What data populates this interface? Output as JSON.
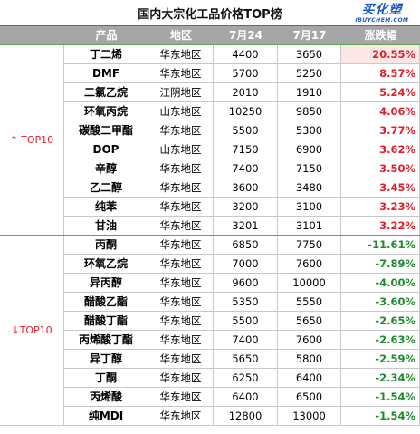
{
  "title": "国内大宗化工品价格TOP榜",
  "logo": {
    "main": "买化塑",
    "sub": "IBUYCHEM.COM"
  },
  "columns": [
    "产品",
    "地区",
    "7月24",
    "7月17",
    "涨跌幅"
  ],
  "groups": [
    {
      "label": "TOP10",
      "arrow": "↑",
      "rows": [
        {
          "product": "丁二烯",
          "region": "华东地区",
          "jul24": "4400",
          "jul17": "3650",
          "change": "20.55%"
        },
        {
          "product": "DMF",
          "region": "华东地区",
          "jul24": "5700",
          "jul17": "5250",
          "change": "8.57%"
        },
        {
          "product": "二氯乙烷",
          "region": "江阴地区",
          "jul24": "2010",
          "jul17": "1910",
          "change": "5.24%"
        },
        {
          "product": "环氧丙烷",
          "region": "山东地区",
          "jul24": "10250",
          "jul17": "9850",
          "change": "4.06%"
        },
        {
          "product": "碳酸二甲酯",
          "region": "华东地区",
          "jul24": "5500",
          "jul17": "5300",
          "change": "3.77%"
        },
        {
          "product": "DOP",
          "region": "山东地区",
          "jul24": "7150",
          "jul17": "6900",
          "change": "3.62%"
        },
        {
          "product": "辛醇",
          "region": "华东地区",
          "jul24": "7400",
          "jul17": "7150",
          "change": "3.50%"
        },
        {
          "product": "乙二醇",
          "region": "华东地区",
          "jul24": "3600",
          "jul17": "3480",
          "change": "3.45%"
        },
        {
          "product": "纯苯",
          "region": "华东地区",
          "jul24": "3200",
          "jul17": "3100",
          "change": "3.23%"
        },
        {
          "product": "甘油",
          "region": "华东地区",
          "jul24": "3201",
          "jul17": "3101",
          "change": "3.22%"
        }
      ]
    },
    {
      "label": "TOP10",
      "arrow": "↓",
      "rows": [
        {
          "product": "丙酮",
          "region": "华东地区",
          "jul24": "6850",
          "jul17": "7750",
          "change": "-11.61%"
        },
        {
          "product": "环氧乙烷",
          "region": "华东地区",
          "jul24": "7000",
          "jul17": "7600",
          "change": "-7.89%"
        },
        {
          "product": "异丙醇",
          "region": "华东地区",
          "jul24": "9600",
          "jul17": "10000",
          "change": "-4.00%"
        },
        {
          "product": "醋酸乙酯",
          "region": "华东地区",
          "jul24": "5350",
          "jul17": "5550",
          "change": "-3.60%"
        },
        {
          "product": "醋酸丁酯",
          "region": "华东地区",
          "jul24": "5500",
          "jul17": "5650",
          "change": "-2.65%"
        },
        {
          "product": "丙烯酸丁酯",
          "region": "华东地区",
          "jul24": "7400",
          "jul17": "7600",
          "change": "-2.63%"
        },
        {
          "product": "异丁醇",
          "region": "华东地区",
          "jul24": "5650",
          "jul17": "5800",
          "change": "-2.59%"
        },
        {
          "product": "丁酮",
          "region": "华东地区",
          "jul24": "6250",
          "jul17": "6400",
          "change": "-2.34%"
        },
        {
          "product": "丙烯酸",
          "region": "华东地区",
          "jul24": "6400",
          "jul17": "6500",
          "change": "-1.54%"
        },
        {
          "product": "纯MDI",
          "region": "华东地区",
          "jul24": "12800",
          "jul17": "13000",
          "change": "-1.54%"
        }
      ]
    }
  ],
  "colors": {
    "header_bg": "#a6a6a6",
    "positive": "#e0202a",
    "negative": "#1d8a2c",
    "logo": "#1a57c6"
  }
}
